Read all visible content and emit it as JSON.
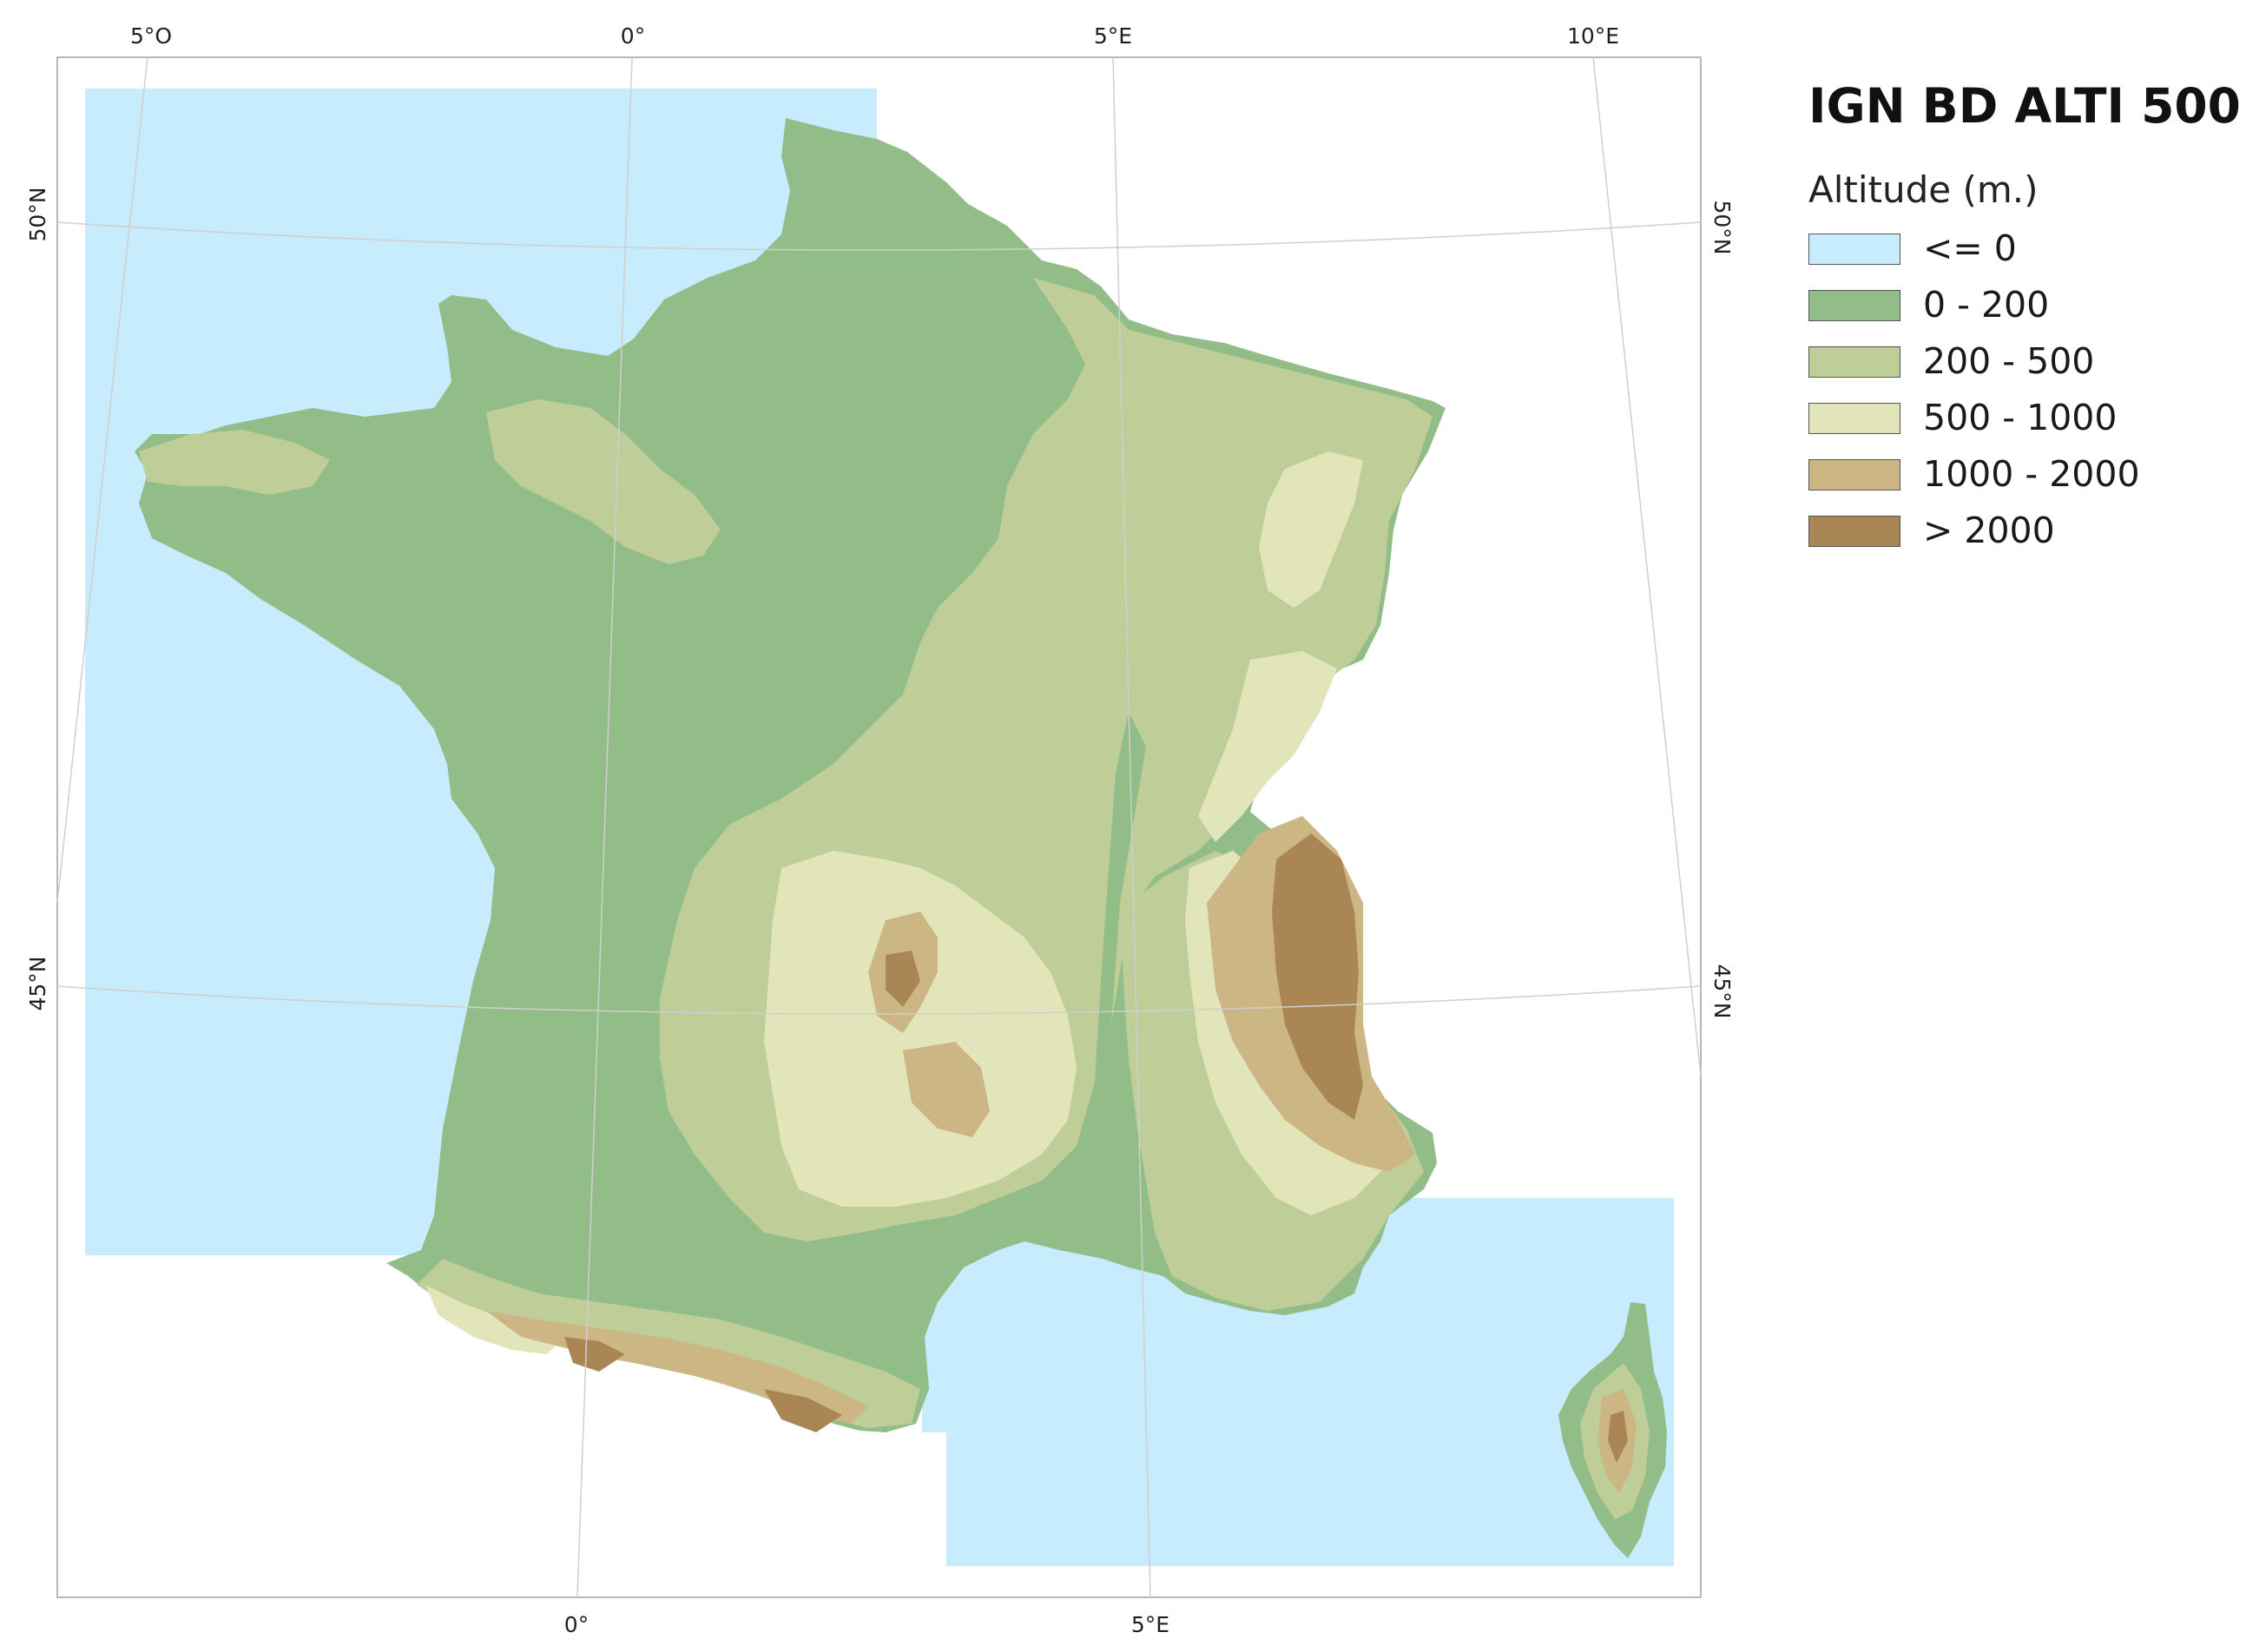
{
  "map": {
    "title": "IGN BD ALTI 500",
    "legend_title": "Altitude (m.)",
    "classes": [
      {
        "label": "<= 0",
        "color": "#c6ecfd"
      },
      {
        "label": "0 - 200",
        "color": "#92bd88"
      },
      {
        "label": "200 - 500",
        "color": "#bfcd99"
      },
      {
        "label": "500 - 1000",
        "color": "#e2e4b9"
      },
      {
        "label": "1000 - 2000",
        "color": "#cbb684"
      },
      {
        "label": "> 2000",
        "color": "#aa8654"
      }
    ],
    "graticule": {
      "top": [
        "5°O",
        "0°",
        "5°E",
        "10°E"
      ],
      "bottom": [
        "0°",
        "5°E"
      ],
      "left": [
        "50°N",
        "45°N"
      ],
      "right": [
        "50°N",
        "45°N"
      ]
    },
    "colors": {
      "sea": "#c6ecfd",
      "frame": "#b8b8b8",
      "graticule_line": "#cfcfcf"
    }
  }
}
